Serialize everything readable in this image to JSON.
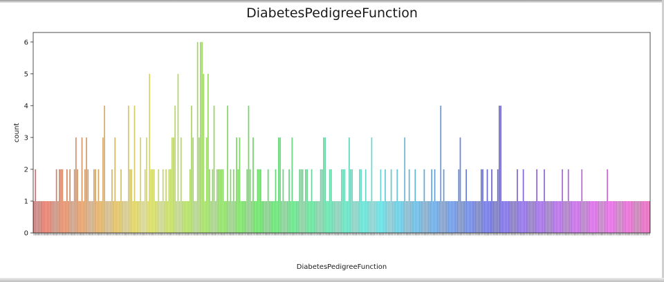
{
  "chart_data": {
    "type": "bar",
    "title": "DiabetesPedigreeFunction",
    "xlabel": "DiabetesPedigreeFunction",
    "ylabel": "count",
    "ylim": [
      0,
      6.3
    ],
    "yticks": [
      0,
      1,
      2,
      3,
      4,
      5,
      6
    ],
    "grid": false,
    "legend": "none",
    "palette": "husl",
    "values": [
      1,
      2,
      1,
      1,
      1,
      1,
      1,
      1,
      1,
      1,
      1,
      1,
      1,
      1,
      1,
      2,
      1,
      2,
      2,
      2,
      1,
      1,
      2,
      1,
      2,
      1,
      1,
      2,
      3,
      2,
      1,
      1,
      3,
      1,
      2,
      3,
      2,
      1,
      1,
      1,
      2,
      2,
      1,
      2,
      1,
      1,
      3,
      4,
      1,
      1,
      1,
      1,
      2,
      1,
      3,
      1,
      1,
      1,
      2,
      1,
      1,
      1,
      1,
      4,
      2,
      2,
      1,
      4,
      1,
      1,
      1,
      3,
      1,
      1,
      2,
      3,
      1,
      5,
      2,
      2,
      2,
      1,
      1,
      2,
      1,
      1,
      2,
      1,
      2,
      1,
      2,
      2,
      3,
      3,
      4,
      1,
      5,
      1,
      3,
      1,
      1,
      1,
      1,
      1,
      2,
      4,
      3,
      1,
      1,
      6,
      3,
      6,
      6,
      5,
      1,
      3,
      5,
      2,
      1,
      2,
      4,
      1,
      2,
      2,
      2,
      2,
      2,
      1,
      1,
      4,
      1,
      2,
      1,
      2,
      1,
      3,
      2,
      3,
      1,
      1,
      1,
      1,
      2,
      4,
      2,
      1,
      3,
      1,
      1,
      2,
      2,
      2,
      1,
      1,
      1,
      1,
      2,
      1,
      1,
      1,
      1,
      2,
      1,
      3,
      3,
      1,
      2,
      1,
      1,
      1,
      2,
      1,
      3,
      1,
      1,
      1,
      1,
      2,
      2,
      2,
      1,
      2,
      2,
      1,
      1,
      2,
      1,
      1,
      1,
      1,
      1,
      2,
      2,
      3,
      3,
      1,
      1,
      2,
      2,
      1,
      1,
      1,
      1,
      1,
      1,
      2,
      2,
      2,
      1,
      1,
      3,
      2,
      2,
      1,
      1,
      1,
      1,
      2,
      2,
      1,
      1,
      2,
      1,
      1,
      1,
      3,
      1,
      1,
      1,
      1,
      1,
      2,
      1,
      1,
      2,
      1,
      1,
      1,
      2,
      1,
      1,
      1,
      2,
      1,
      1,
      1,
      1,
      3,
      1,
      1,
      2,
      1,
      1,
      1,
      2,
      1,
      1,
      1,
      1,
      1,
      2,
      1,
      1,
      1,
      1,
      2,
      1,
      2,
      1,
      1,
      1,
      4,
      1,
      2,
      1,
      1,
      1,
      1,
      1,
      1,
      1,
      1,
      1,
      2,
      3,
      1,
      1,
      1,
      2,
      1,
      1,
      1,
      1,
      1,
      1,
      1,
      1,
      1,
      2,
      2,
      1,
      1,
      2,
      1,
      1,
      2,
      1,
      1,
      1,
      2,
      4,
      4,
      1,
      1,
      1,
      1,
      1,
      1,
      1,
      1,
      1,
      1,
      2,
      1,
      1,
      1,
      2,
      1,
      1,
      1,
      1,
      1,
      1,
      1,
      1,
      2,
      1,
      1,
      1,
      1,
      2,
      1,
      1,
      1,
      1,
      1,
      1,
      1,
      1,
      1,
      1,
      1,
      2,
      1,
      1,
      1,
      2,
      1,
      1,
      1,
      1,
      1,
      1,
      1,
      1,
      2,
      1,
      1,
      1,
      1,
      1,
      1,
      1,
      1,
      1,
      1,
      1,
      1,
      1,
      1,
      1,
      1,
      2,
      1,
      1,
      1,
      1,
      1,
      1,
      1,
      1,
      1,
      1,
      1,
      1,
      1,
      1,
      1,
      1,
      1,
      1,
      1,
      1,
      1,
      1,
      1,
      1,
      1,
      1,
      1,
      1
    ]
  }
}
